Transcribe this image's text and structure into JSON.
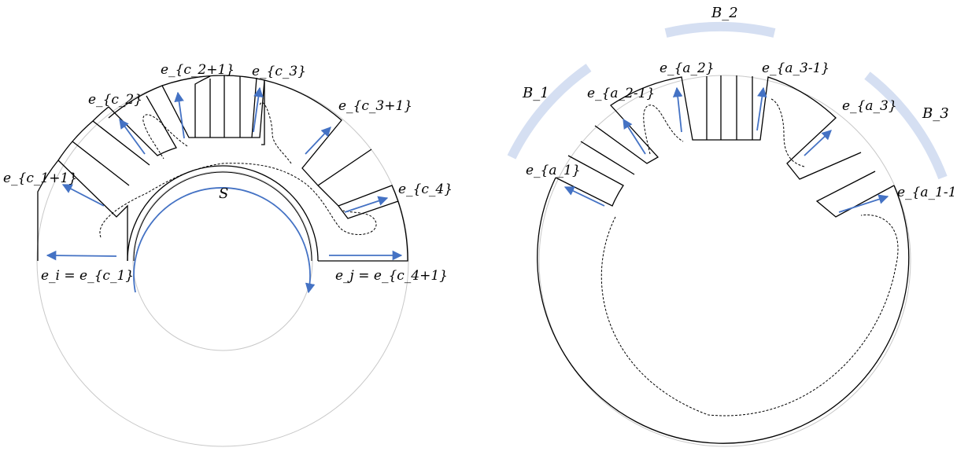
{
  "left_panel": {
    "center_label": "S",
    "edge_labels": {
      "ei": "e_i = e_{c_1}",
      "ej": "e_j = e_{c_4+1}",
      "c1p1": "e_{c_1+1}",
      "c2": "e_{c_2}",
      "c2p1": "e_{c_2+1}",
      "c3": "e_{c_3}",
      "c3p1": "e_{c_3+1}",
      "c4": "e_{c_4}"
    }
  },
  "right_panel": {
    "block_labels": [
      "B_1",
      "B_2",
      "B_3"
    ],
    "edge_labels": {
      "a1": "e_{a_1}",
      "a2m1": "e_{a_2-1}",
      "a2": "e_{a_2}",
      "a3m1": "e_{a_3-1}",
      "a3": "e_{a_3}",
      "a1m1": "e_{a_1-1}"
    }
  },
  "colors": {
    "arrow": "#4472c4",
    "block_band": "#d5dff2",
    "outline": "#000000",
    "faint": "#c8c8c8"
  }
}
